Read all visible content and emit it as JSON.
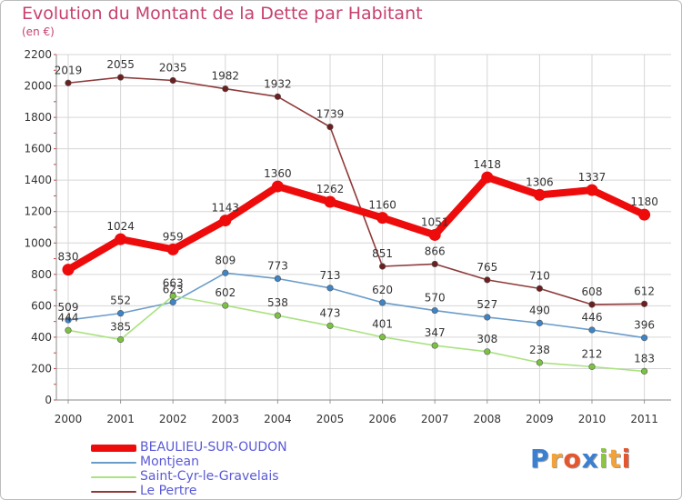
{
  "title": "Evolution du Montant de la Dette par Habitant",
  "subtitle": "(en €)",
  "logo": {
    "text": "Proxiti",
    "letter_colors": [
      "#3a7fd0",
      "#f1a33a",
      "#e4572e",
      "#3a7fd0",
      "#8cc63f",
      "#f1a33a",
      "#e4572e"
    ]
  },
  "chart_data": {
    "type": "line",
    "x": [
      "2000",
      "2001",
      "2002",
      "2003",
      "2004",
      "2005",
      "2006",
      "2007",
      "2008",
      "2009",
      "2010",
      "2011"
    ],
    "ylim": [
      0,
      2200
    ],
    "yticks": [
      "0",
      "200",
      "400",
      "600",
      "800",
      "1000",
      "1200",
      "1400",
      "1600",
      "1800",
      "2000",
      "2200"
    ],
    "grid": true,
    "legend_position": "bottom-left",
    "series": [
      {
        "name": "BEAULIEU-SUR-OUDON",
        "color": "#ee0b0b",
        "marker": "#ee0b0b",
        "thick": true,
        "values": [
          830,
          1024,
          959,
          1143,
          1360,
          1262,
          1160,
          1051,
          1418,
          1306,
          1337,
          1180
        ],
        "labels": [
          "830",
          "1024",
          "959",
          "1143",
          "1360",
          "1262",
          "1160",
          "1051",
          "1418",
          "1306",
          "1337",
          "1180"
        ]
      },
      {
        "name": "Montjean",
        "color": "#6a9cc9",
        "marker": "#3d85c6",
        "thick": false,
        "values": [
          509,
          552,
          623,
          809,
          773,
          713,
          620,
          570,
          527,
          490,
          446,
          396
        ],
        "labels": [
          "509",
          "552",
          "623",
          "809",
          "773",
          "713",
          "620",
          "570",
          "527",
          "490",
          "446",
          "396"
        ]
      },
      {
        "name": "Saint-Cyr-le-Gravelais",
        "color": "#a9e27f",
        "marker": "#7cc242",
        "thick": false,
        "values": [
          444,
          385,
          663,
          602,
          538,
          473,
          401,
          347,
          308,
          238,
          212,
          183
        ],
        "labels": [
          "444",
          "385",
          "663",
          "602",
          "538",
          "473",
          "401",
          "347",
          "308",
          "238",
          "212",
          "183"
        ]
      },
      {
        "name": "Le Pertre",
        "color": "#8e3a3a",
        "marker": "#6b1f1f",
        "thick": false,
        "values": [
          2019,
          2055,
          2035,
          1982,
          1932,
          1739,
          851,
          866,
          765,
          710,
          608,
          612
        ],
        "labels": [
          "2019",
          "2055",
          "2035",
          "1982",
          "1932",
          "1739",
          "851",
          "866",
          "765",
          "710",
          "608",
          "612"
        ]
      }
    ]
  }
}
